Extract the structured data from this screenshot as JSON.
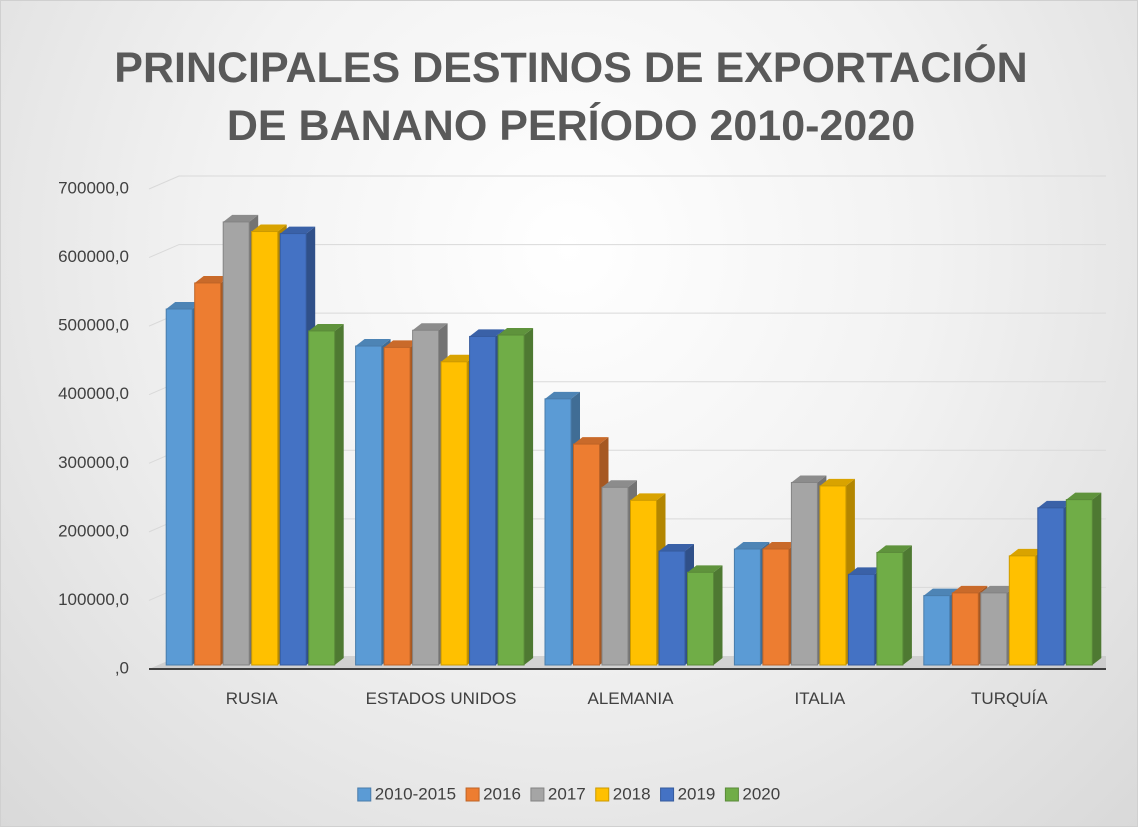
{
  "chart_data": {
    "type": "bar",
    "title": "PRINCIPALES DESTINOS DE EXPORTACIÓN DE BANANO PERÍODO 2010-2020",
    "categories": [
      "RUSIA",
      "ESTADOS UNIDOS",
      "ALEMANIA",
      "ITALIA",
      "TURQUÍA"
    ],
    "series": [
      {
        "name": "2010-2015",
        "color": "#5b9bd5",
        "values": [
          525000,
          471000,
          394000,
          175000,
          107000
        ]
      },
      {
        "name": "2016",
        "color": "#ed7d31",
        "values": [
          563000,
          469000,
          328000,
          175000,
          111000
        ]
      },
      {
        "name": "2017",
        "color": "#a5a5a5",
        "values": [
          652000,
          494000,
          265000,
          272000,
          111000
        ]
      },
      {
        "name": "2018",
        "color": "#ffc000",
        "values": [
          638000,
          448000,
          246000,
          267000,
          165000
        ]
      },
      {
        "name": "2019",
        "color": "#4472c4",
        "values": [
          635000,
          485000,
          172000,
          138000,
          235000
        ]
      },
      {
        "name": "2020",
        "color": "#70ad47",
        "values": [
          493000,
          487000,
          141000,
          170000,
          247000
        ]
      }
    ],
    "ylim": [
      0,
      700000
    ],
    "yticks": [
      {
        "value": 0,
        "label": ",0"
      },
      {
        "value": 100000,
        "label": "100000,0"
      },
      {
        "value": 200000,
        "label": "200000,0"
      },
      {
        "value": 300000,
        "label": "300000,0"
      },
      {
        "value": 400000,
        "label": "400000,0"
      },
      {
        "value": 500000,
        "label": "500000,0"
      },
      {
        "value": 600000,
        "label": "600000,0"
      },
      {
        "value": 700000,
        "label": "700000,0"
      }
    ],
    "grid": true,
    "legend": "bottom"
  }
}
